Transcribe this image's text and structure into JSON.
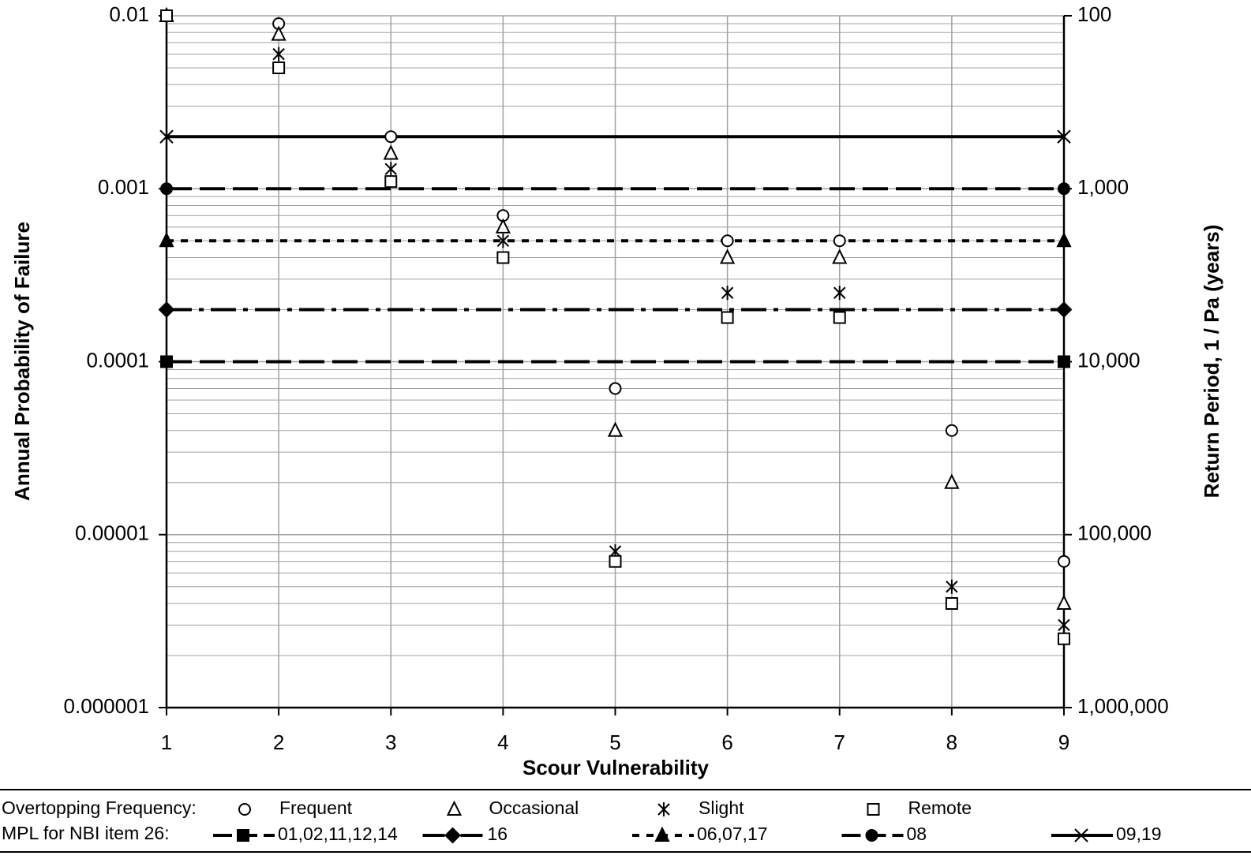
{
  "chart_data": {
    "type": "scatter",
    "x_label": "Scour Vulnerability",
    "y_label": "Annual Probability of Failure",
    "y2_label": "Return Period, 1 / Pa (years)",
    "xlim": [
      1,
      9
    ],
    "xticks": [
      1,
      2,
      3,
      4,
      5,
      6,
      7,
      8,
      9
    ],
    "ylim": [
      1e-06,
      0.01
    ],
    "yticks": [
      1e-06,
      1e-05,
      0.0001,
      0.001,
      0.01
    ],
    "y2lim": [
      1000000,
      100
    ],
    "y2ticks": [
      {
        "value": 1000000,
        "label": "1,000,000"
      },
      {
        "value": 100000,
        "label": "100,000"
      },
      {
        "value": 10000,
        "label": "10,000"
      },
      {
        "value": 1000,
        "label": "1,000"
      },
      100
    ],
    "y_scale": "log",
    "y2_scale": "log",
    "grid": true,
    "color": "#000000",
    "grid_color": "#a0a0a0",
    "legend": {
      "position": "bottom",
      "scatter_title": "Overtopping Frequency:",
      "line_title": "MPL for NBI item 26:"
    },
    "series": [
      {
        "name": "Frequent",
        "type": "scatter",
        "marker": "circle",
        "x": [
          1,
          2,
          3,
          4,
          5,
          6,
          7,
          8,
          9
        ],
        "values": [
          0.01,
          0.009,
          0.002,
          0.0007,
          7e-05,
          0.0005,
          0.0005,
          4e-05,
          7e-06
        ]
      },
      {
        "name": "Occasional",
        "type": "scatter",
        "marker": "triangle",
        "x": [
          1,
          2,
          3,
          4,
          5,
          6,
          7,
          8,
          9
        ],
        "values": [
          0.01,
          0.0078,
          0.0016,
          0.0006,
          4e-05,
          0.0004,
          0.0004,
          2e-05,
          4e-06
        ]
      },
      {
        "name": "Slight",
        "type": "scatter",
        "marker": "asterisk",
        "x": [
          1,
          2,
          3,
          4,
          5,
          6,
          7,
          8,
          9
        ],
        "values": [
          0.01,
          0.006,
          0.0013,
          0.0005,
          8e-06,
          0.00025,
          0.00025,
          5e-06,
          3e-06
        ]
      },
      {
        "name": "Remote",
        "type": "scatter",
        "marker": "square",
        "x": [
          1,
          2,
          3,
          4,
          5,
          6,
          7,
          8,
          9
        ],
        "values": [
          0.01,
          0.005,
          0.0011,
          0.0004,
          7e-06,
          0.00018,
          0.00018,
          4e-06,
          2.5e-06
        ]
      },
      {
        "name": "01,02,11,12,14",
        "type": "line",
        "marker": "square",
        "dash": "long",
        "x": [
          1,
          9
        ],
        "values": [
          0.0001,
          0.0001
        ]
      },
      {
        "name": "16",
        "type": "line",
        "marker": "diamond",
        "dash": "dashdot",
        "x": [
          1,
          9
        ],
        "values": [
          0.0002,
          0.0002
        ]
      },
      {
        "name": "06,07,17",
        "type": "line",
        "marker": "triangle",
        "dash": "short",
        "x": [
          1,
          9
        ],
        "values": [
          0.0005,
          0.0005
        ]
      },
      {
        "name": "08",
        "type": "line",
        "marker": "circle",
        "dash": "long",
        "x": [
          1,
          9
        ],
        "values": [
          0.001,
          0.001
        ]
      },
      {
        "name": "09,19",
        "type": "line",
        "marker": "cross",
        "dash": "solid",
        "x": [
          1,
          9
        ],
        "values": [
          0.002,
          0.002
        ]
      }
    ]
  }
}
